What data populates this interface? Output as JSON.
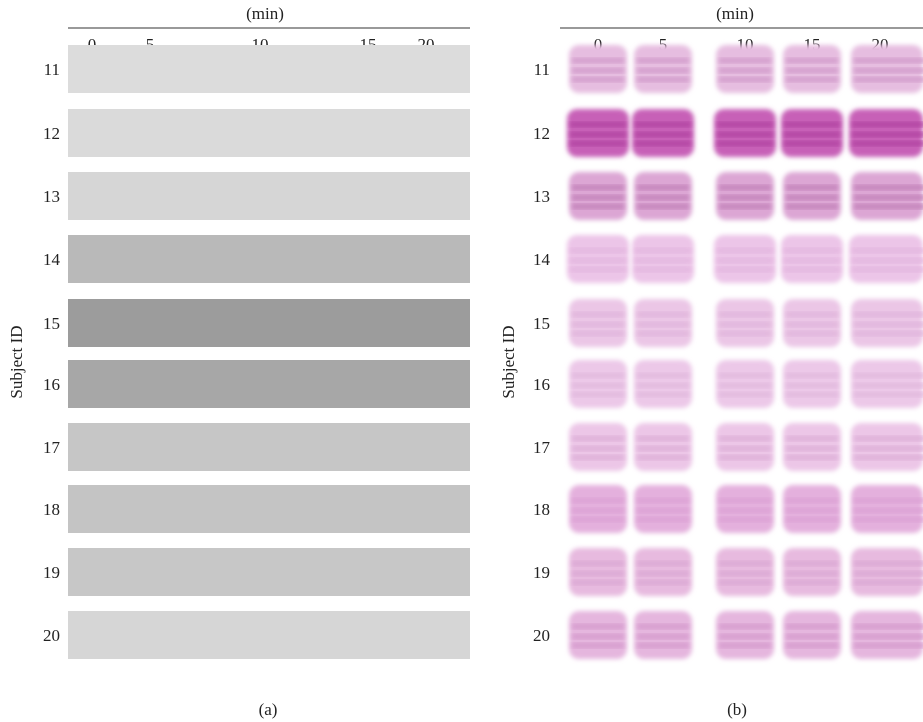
{
  "panels": [
    {
      "header": "(min)",
      "times": [
        "0",
        "5",
        "10",
        "15",
        "20"
      ],
      "y_label": "Subject ID",
      "subjects": [
        "11",
        "12",
        "13",
        "14",
        "15",
        "16",
        "17",
        "18",
        "19",
        "20"
      ],
      "caption": "(a)"
    },
    {
      "header": "(min)",
      "times": [
        "0",
        "5",
        "10",
        "15",
        "20"
      ],
      "y_label": "Subject ID",
      "subjects": [
        "11",
        "12",
        "13",
        "14",
        "15",
        "16",
        "17",
        "18",
        "19",
        "20"
      ],
      "caption": "(b)"
    }
  ]
}
